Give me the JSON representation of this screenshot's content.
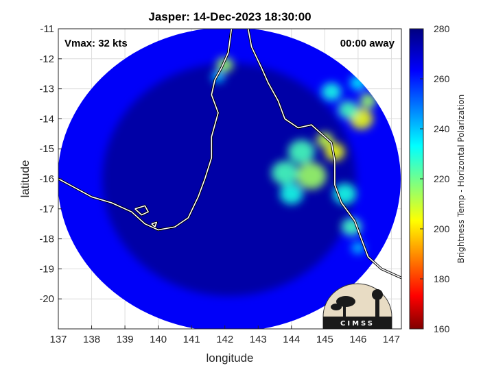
{
  "chart_data": {
    "type": "heatmap",
    "title": "Jasper: 14-Dec-2023 18:30:00",
    "xlabel": "longitude",
    "ylabel": "latitude",
    "xlim": [
      137,
      147.3
    ],
    "ylim": [
      -21,
      -11
    ],
    "x_ticks": [
      "137",
      "138",
      "139",
      "140",
      "141",
      "142",
      "143",
      "144",
      "145",
      "146",
      "147"
    ],
    "y_ticks": [
      "-11",
      "-12",
      "-13",
      "-14",
      "-15",
      "-16",
      "-17",
      "-18",
      "-19",
      "-20"
    ],
    "grid": true,
    "annotations": {
      "vmax": "Vmax: 32 kts",
      "time_away": "00:00 away"
    },
    "colorbar": {
      "label": "Brightness Temp - Horizontal Polarization",
      "ticks": [
        "280",
        "260",
        "240",
        "220",
        "200",
        "180",
        "160"
      ],
      "range": [
        160,
        280
      ],
      "colormap": "jet"
    },
    "background_value": 275,
    "disc_edge_value": 264,
    "convective_features": [
      {
        "lon": 146.1,
        "lat": -14.0,
        "radius_deg": 0.35,
        "value": 205
      },
      {
        "lon": 146.3,
        "lat": -13.4,
        "radius_deg": 0.25,
        "value": 215
      },
      {
        "lon": 145.7,
        "lat": -13.7,
        "radius_deg": 0.3,
        "value": 225
      },
      {
        "lon": 145.2,
        "lat": -13.1,
        "radius_deg": 0.3,
        "value": 230
      },
      {
        "lon": 145.0,
        "lat": -14.7,
        "radius_deg": 0.25,
        "value": 210
      },
      {
        "lon": 145.3,
        "lat": -15.1,
        "radius_deg": 0.3,
        "value": 205
      },
      {
        "lon": 144.3,
        "lat": -15.1,
        "radius_deg": 0.4,
        "value": 225
      },
      {
        "lon": 144.6,
        "lat": -15.9,
        "radius_deg": 0.45,
        "value": 215
      },
      {
        "lon": 143.8,
        "lat": -15.8,
        "radius_deg": 0.4,
        "value": 225
      },
      {
        "lon": 144.0,
        "lat": -16.5,
        "radius_deg": 0.35,
        "value": 230
      },
      {
        "lon": 145.6,
        "lat": -16.5,
        "radius_deg": 0.35,
        "value": 230
      },
      {
        "lon": 145.8,
        "lat": -17.6,
        "radius_deg": 0.3,
        "value": 225
      },
      {
        "lon": 142.0,
        "lat": -12.2,
        "radius_deg": 0.25,
        "value": 215
      },
      {
        "lon": 141.8,
        "lat": -12.6,
        "radius_deg": 0.2,
        "value": 240
      },
      {
        "lon": 146.0,
        "lat": -18.3,
        "radius_deg": 0.2,
        "value": 240
      },
      {
        "lon": 146.0,
        "lat": -12.8,
        "radius_deg": 0.25,
        "value": 235
      }
    ],
    "coastlines": [
      [
        [
          137.0,
          -16.0
        ],
        [
          137.5,
          -16.3
        ],
        [
          138.0,
          -16.6
        ],
        [
          138.6,
          -16.8
        ],
        [
          139.2,
          -17.1
        ],
        [
          139.6,
          -17.5
        ],
        [
          140.0,
          -17.7
        ],
        [
          140.5,
          -17.6
        ],
        [
          140.9,
          -17.3
        ],
        [
          141.2,
          -16.6
        ],
        [
          141.4,
          -16.0
        ],
        [
          141.6,
          -15.3
        ],
        [
          141.6,
          -14.6
        ],
        [
          141.8,
          -13.8
        ],
        [
          141.6,
          -13.2
        ],
        [
          141.7,
          -12.7
        ],
        [
          141.9,
          -12.3
        ],
        [
          142.1,
          -11.8
        ],
        [
          142.2,
          -11.0
        ]
      ],
      [
        [
          142.7,
          -11.0
        ],
        [
          142.8,
          -11.6
        ],
        [
          143.1,
          -12.3
        ],
        [
          143.3,
          -12.8
        ],
        [
          143.6,
          -13.4
        ],
        [
          143.8,
          -14.0
        ],
        [
          144.2,
          -14.3
        ],
        [
          144.6,
          -14.2
        ],
        [
          145.2,
          -14.8
        ],
        [
          145.3,
          -15.4
        ],
        [
          145.3,
          -16.2
        ],
        [
          145.5,
          -16.8
        ],
        [
          145.9,
          -17.4
        ],
        [
          146.1,
          -18.0
        ],
        [
          146.3,
          -18.6
        ],
        [
          146.7,
          -19.0
        ],
        [
          147.3,
          -19.3
        ]
      ],
      [
        [
          139.3,
          -17.0
        ],
        [
          139.6,
          -16.9
        ],
        [
          139.7,
          -17.1
        ],
        [
          139.5,
          -17.2
        ],
        [
          139.3,
          -17.0
        ]
      ],
      [
        [
          139.8,
          -17.5
        ],
        [
          139.95,
          -17.45
        ],
        [
          139.9,
          -17.6
        ],
        [
          139.8,
          -17.5
        ]
      ]
    ]
  },
  "logo": {
    "text": "CIMSS"
  }
}
